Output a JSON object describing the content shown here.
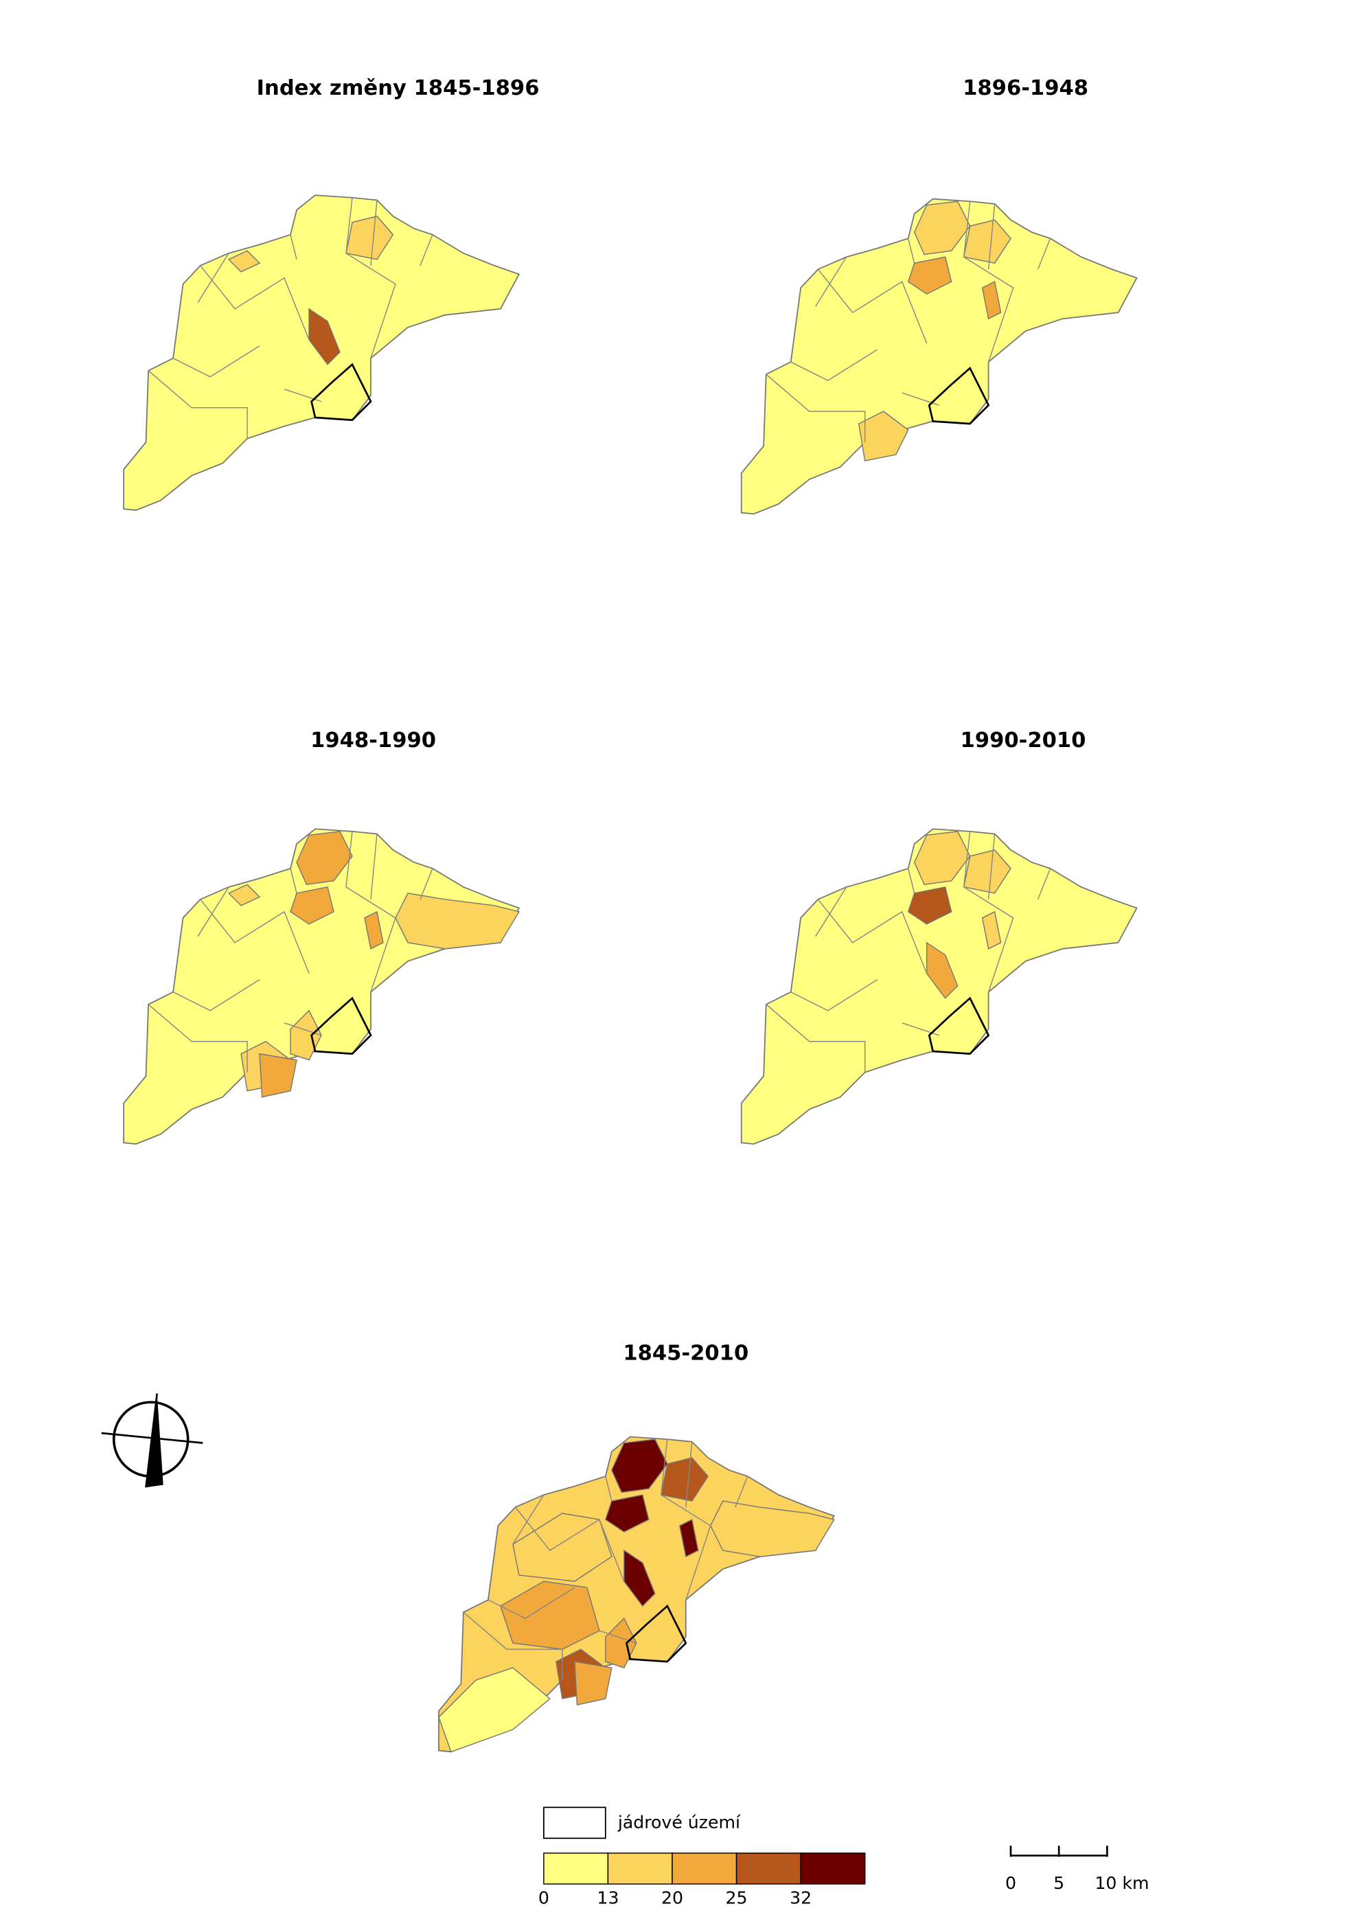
{
  "maps": [
    {
      "title": "Index změny 1845-1896"
    },
    {
      "title": "1896-1948"
    },
    {
      "title": "1948-1990"
    },
    {
      "title": "1990-2010"
    },
    {
      "title": "1845-2010"
    }
  ],
  "legend": {
    "core_label": "jádrové území",
    "breaks": [
      0,
      13,
      20,
      25,
      32
    ],
    "colors": [
      "#ffff80",
      "#fcd35c",
      "#f2a93b",
      "#b5561a",
      "#6b0000"
    ]
  },
  "scale_bar": {
    "labels": [
      "0",
      "5",
      "10 km"
    ]
  }
}
